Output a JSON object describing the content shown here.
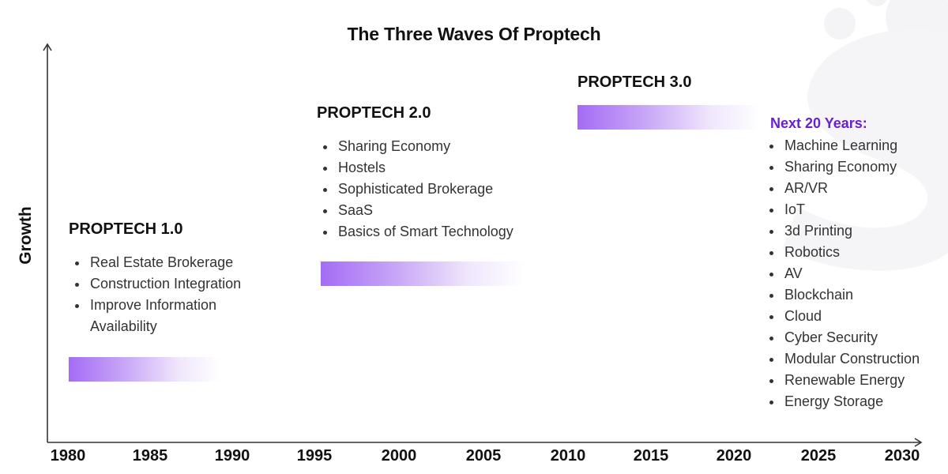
{
  "title": "The Three Waves Of Proptech",
  "y_axis_label": "Growth",
  "x_ticks": [
    "1980",
    "1985",
    "1990",
    "1995",
    "2000",
    "2005",
    "2010",
    "2015",
    "2020",
    "2025",
    "2030"
  ],
  "waves": [
    {
      "title": "PROPTECH 1.0",
      "items": [
        "Real Estate Brokerage",
        "Construction Integration",
        "Improve Information Availability"
      ]
    },
    {
      "title": "PROPTECH 2.0",
      "items": [
        "Sharing Economy",
        "Hostels",
        "Sophisticated Brokerage",
        "SaaS",
        "Basics of Smart Technology"
      ]
    },
    {
      "title": "PROPTECH 3.0",
      "items": []
    }
  ],
  "next": {
    "label": "Next 20 Years:",
    "items": [
      "Machine Learning",
      "Sharing Economy",
      "AR/VR",
      "IoT",
      "3d Printing",
      "Robotics",
      "AV",
      "Blockchain",
      "Cloud",
      "Cyber Security",
      "Modular Construction",
      "Renewable Energy",
      "Energy Storage"
    ]
  },
  "colors": {
    "accent": "#a46cf5",
    "next_label": "#6a1fd1",
    "watermark": "#f4f4f6"
  }
}
